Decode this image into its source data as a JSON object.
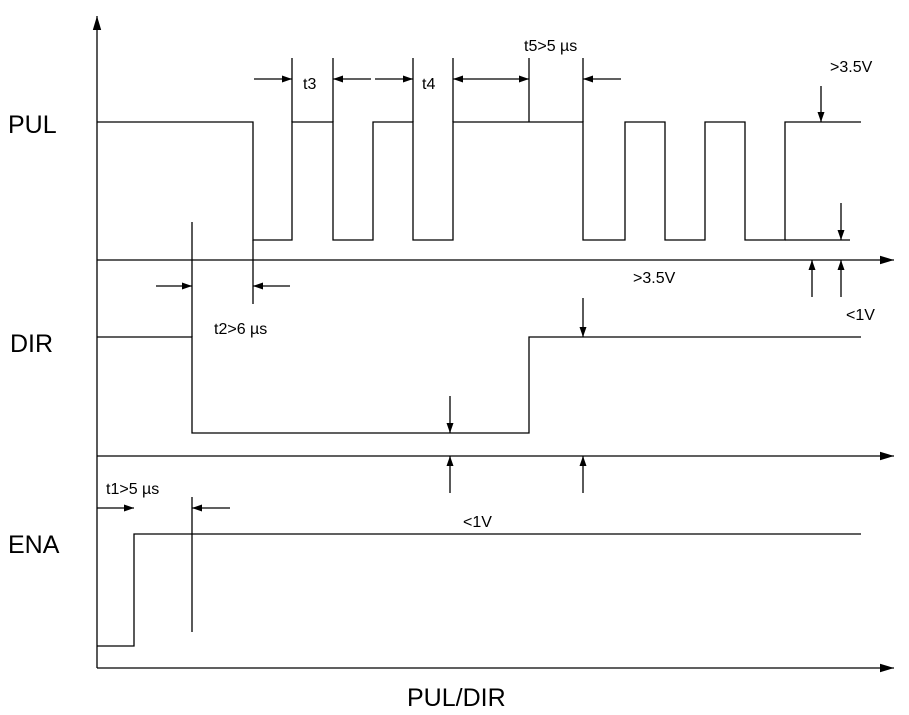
{
  "signals": {
    "pul": "PUL",
    "dir": "DIR",
    "ena": "ENA"
  },
  "timing": {
    "t1": "t1>5 µs",
    "t2": "t2>6 µs",
    "t3": "t3",
    "t4": "t4",
    "t5": "t5>5 µs"
  },
  "levels": {
    "pul_high": ">3.5V",
    "high_threshold": ">3.5V",
    "pul_low": "<1V",
    "dir_low": "<1V"
  },
  "caption": "PUL/DIR",
  "colors": {
    "stroke": "#000000",
    "background": "#ffffff"
  }
}
